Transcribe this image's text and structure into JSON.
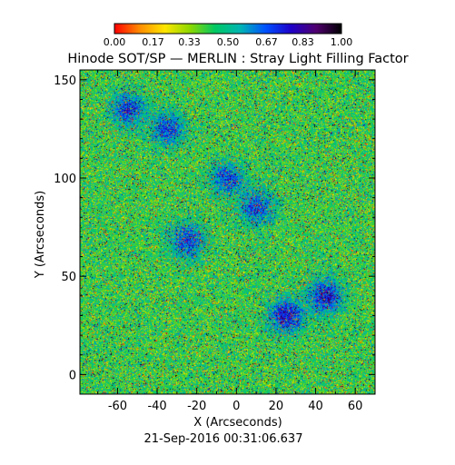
{
  "chart_data": {
    "type": "heatmap",
    "title": "Hinode SOT/SP — MERLIN : Stray Light Filling Factor",
    "xlabel": "X (Arcseconds)",
    "ylabel": "Y (Arcseconds)",
    "timestamp": "21-Sep-2016 00:31:06.637",
    "xlim": [
      -79,
      70
    ],
    "ylim": [
      -10,
      155
    ],
    "x_ticks": [
      -60,
      -40,
      -20,
      0,
      20,
      40,
      60
    ],
    "y_ticks": [
      0,
      50,
      100,
      150
    ],
    "colorbar": {
      "range": [
        0,
        1
      ],
      "tick_values": [
        0.0,
        0.17,
        0.33,
        0.5,
        0.67,
        0.83,
        1.0
      ],
      "tick_labels": [
        "0.00",
        "0.17",
        "0.33",
        "0.50",
        "0.67",
        "0.83",
        "1.00"
      ],
      "colormap": [
        "#ff0000",
        "#ff8c00",
        "#ffe600",
        "#8cd800",
        "#00c864",
        "#00b4b4",
        "#0050ff",
        "#1e00c8",
        "#50006e",
        "#000000"
      ]
    },
    "field": {
      "description_values": "mostly 0.3–0.6 with scattered red (~0.1) and blue (~0.7–0.9) pixels",
      "high_value_regions": [
        {
          "x": 25,
          "y": 30,
          "value": 0.8
        },
        {
          "x": 45,
          "y": 40,
          "value": 0.78
        },
        {
          "x": -25,
          "y": 68,
          "value": 0.72
        },
        {
          "x": -55,
          "y": 135,
          "value": 0.72
        },
        {
          "x": -35,
          "y": 125,
          "value": 0.7
        },
        {
          "x": -5,
          "y": 100,
          "value": 0.7
        },
        {
          "x": 10,
          "y": 85,
          "value": 0.7
        }
      ]
    }
  }
}
